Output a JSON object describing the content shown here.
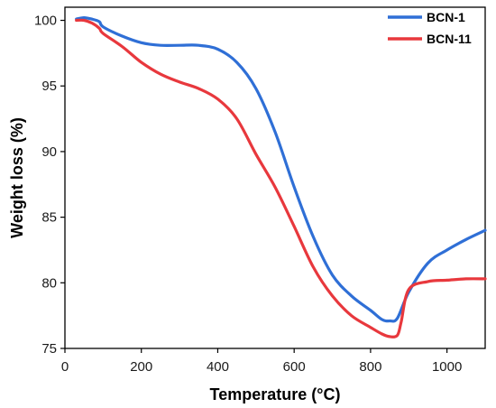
{
  "chart_data": {
    "type": "line",
    "title": "",
    "xlabel": "Temperature (°C)",
    "ylabel": "Weight loss (%)",
    "xlim": [
      0,
      1100
    ],
    "ylim": [
      75,
      101
    ],
    "xticks": [
      0,
      200,
      400,
      600,
      800,
      1000
    ],
    "yticks": [
      75,
      80,
      85,
      90,
      95,
      100
    ],
    "grid": false,
    "legend_position": "top-right",
    "series": [
      {
        "name": "BCN-1",
        "color": "#2f6fd6",
        "x": [
          30,
          50,
          70,
          90,
          100,
          150,
          200,
          250,
          300,
          350,
          400,
          450,
          500,
          550,
          600,
          650,
          700,
          750,
          800,
          830,
          850,
          870,
          900,
          950,
          1000,
          1050,
          1100
        ],
        "y": [
          100.1,
          100.2,
          100.1,
          99.9,
          99.5,
          98.8,
          98.3,
          98.1,
          98.1,
          98.1,
          97.8,
          96.8,
          94.8,
          91.5,
          87.3,
          83.5,
          80.6,
          79.0,
          77.9,
          77.2,
          77.1,
          77.3,
          79.3,
          81.5,
          82.5,
          83.3,
          84.0
        ]
      },
      {
        "name": "BCN-11",
        "color": "#e8383d",
        "x": [
          30,
          50,
          70,
          90,
          100,
          150,
          200,
          250,
          300,
          350,
          400,
          450,
          500,
          550,
          600,
          650,
          700,
          750,
          800,
          830,
          850,
          870,
          880,
          900,
          950,
          1000,
          1050,
          1100
        ],
        "y": [
          100.0,
          100.0,
          99.8,
          99.4,
          99.0,
          98.0,
          96.8,
          95.9,
          95.3,
          94.8,
          94.0,
          92.5,
          89.8,
          87.3,
          84.3,
          81.2,
          79.0,
          77.5,
          76.6,
          76.1,
          75.9,
          76.0,
          77.0,
          79.5,
          80.1,
          80.2,
          80.3,
          80.3
        ]
      }
    ]
  }
}
